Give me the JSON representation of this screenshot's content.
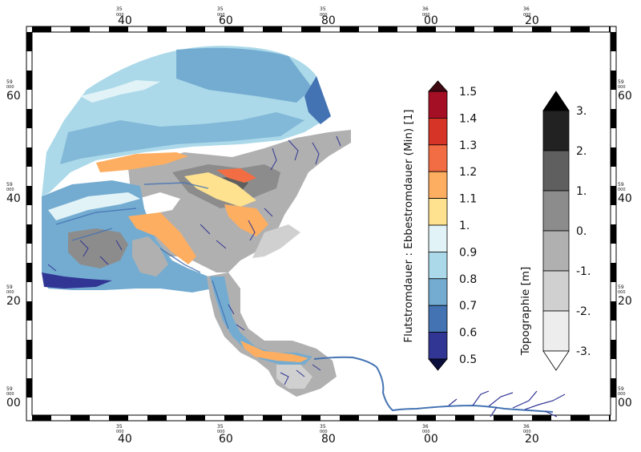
{
  "map": {
    "frame": {
      "x_tick_labels": [
        {
          "small": "35",
          "small2": "000",
          "big": "40"
        },
        {
          "small": "35",
          "small2": "000",
          "big": "60"
        },
        {
          "small": "35",
          "small2": "000",
          "big": "80"
        },
        {
          "small": "36",
          "small2": "000",
          "big": "00"
        },
        {
          "small": "36",
          "small2": "000",
          "big": "20"
        }
      ],
      "y_tick_labels": [
        {
          "small": "59",
          "small2": "000",
          "big": "60"
        },
        {
          "small": "59",
          "small2": "000",
          "big": "40"
        },
        {
          "small": "59",
          "small2": "000",
          "big": "20"
        },
        {
          "small": "59",
          "small2": "000",
          "big": "00"
        }
      ]
    },
    "ratio_legend": {
      "title": "Flutstromdauer : Ebbestromdauer (Min) [1]",
      "labels": [
        "1.5",
        "1.4",
        "1.3",
        "1.2",
        "1.1",
        "1.",
        "0.9",
        "0.8",
        "0.7",
        "0.6",
        "0.5"
      ],
      "colors_top_to_bottom": [
        "#a50f26",
        "#d63427",
        "#f26d43",
        "#fdae61",
        "#fee290",
        "#e1f3f7",
        "#abd9e9",
        "#74acd1",
        "#4473b3",
        "#313694"
      ],
      "over_color": "#3f0a12",
      "under_color": "#0b0d3a"
    },
    "topo_legend": {
      "title": "Topographie [m]",
      "labels": [
        "3.",
        "2.",
        "1.",
        "0.",
        "-1.",
        "-2.",
        "-3."
      ],
      "colors_top_to_bottom": [
        "#222222",
        "#5f5f5f",
        "#8c8c8c",
        "#b0b0b0",
        "#d0d0d0",
        "#ededed"
      ],
      "over_color": "#000000",
      "under_color": "#ffffff"
    }
  }
}
